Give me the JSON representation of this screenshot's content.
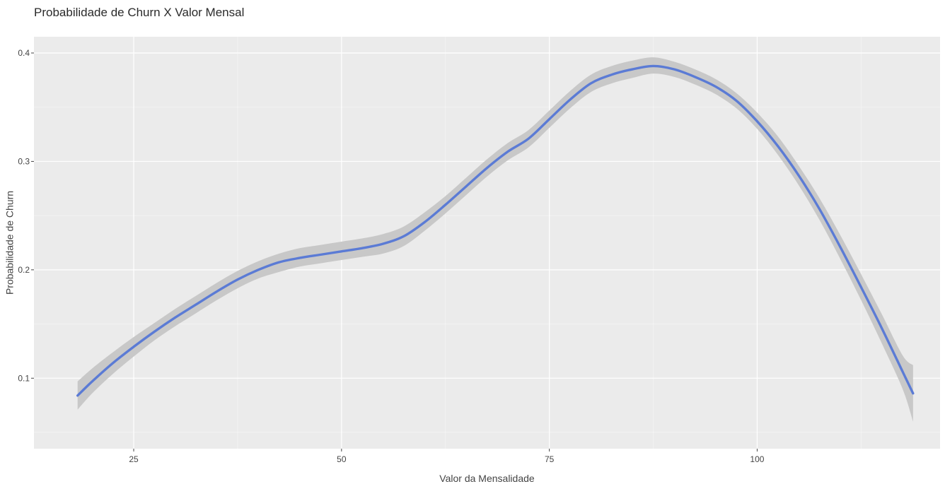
{
  "chart_data": {
    "type": "line",
    "title": "Probabilidade de Churn X Valor Mensal",
    "xlabel": "Valor da Mensalidade",
    "ylabel": "Probabilidade de Churn",
    "xlim": [
      13,
      122
    ],
    "ylim": [
      0.035,
      0.415
    ],
    "x_ticks": [
      25,
      50,
      75,
      100
    ],
    "y_ticks": [
      0.1,
      0.2,
      0.3,
      0.4
    ],
    "grid": true,
    "legend": "none",
    "colors": {
      "line": "#5b7bd5",
      "band": "#c8c8c8",
      "panel": "#ebebeb",
      "grid": "#ffffff"
    },
    "series": [
      {
        "x": [
          18.25,
          20,
          22.5,
          25,
          27.5,
          30,
          32.5,
          35,
          37.5,
          40,
          42.5,
          45,
          47.5,
          50,
          52.5,
          55,
          57.5,
          60,
          62.5,
          65,
          67.5,
          70,
          72.5,
          75,
          77.5,
          80,
          82.5,
          85,
          87.5,
          90,
          92.5,
          95,
          97.5,
          100,
          102.5,
          105,
          107.5,
          110,
          112.5,
          115,
          117.5,
          118.75
        ],
        "y": [
          0.084,
          0.097,
          0.114,
          0.129,
          0.143,
          0.156,
          0.168,
          0.18,
          0.191,
          0.2,
          0.207,
          0.211,
          0.214,
          0.217,
          0.22,
          0.224,
          0.231,
          0.244,
          0.26,
          0.277,
          0.294,
          0.309,
          0.321,
          0.339,
          0.357,
          0.372,
          0.38,
          0.385,
          0.388,
          0.385,
          0.378,
          0.369,
          0.356,
          0.337,
          0.314,
          0.287,
          0.256,
          0.221,
          0.184,
          0.146,
          0.106,
          0.086
        ],
        "y_lower": [
          0.071,
          0.086,
          0.104,
          0.12,
          0.135,
          0.148,
          0.16,
          0.172,
          0.183,
          0.192,
          0.198,
          0.203,
          0.206,
          0.209,
          0.212,
          0.215,
          0.222,
          0.236,
          0.252,
          0.269,
          0.286,
          0.301,
          0.313,
          0.331,
          0.349,
          0.364,
          0.372,
          0.377,
          0.381,
          0.378,
          0.371,
          0.362,
          0.349,
          0.33,
          0.306,
          0.278,
          0.246,
          0.21,
          0.172,
          0.132,
          0.09,
          0.06
        ],
        "y_upper": [
          0.097,
          0.109,
          0.124,
          0.138,
          0.151,
          0.164,
          0.176,
          0.188,
          0.199,
          0.208,
          0.215,
          0.22,
          0.223,
          0.226,
          0.229,
          0.233,
          0.24,
          0.253,
          0.268,
          0.285,
          0.302,
          0.317,
          0.329,
          0.347,
          0.365,
          0.38,
          0.388,
          0.393,
          0.396,
          0.392,
          0.385,
          0.376,
          0.363,
          0.345,
          0.323,
          0.296,
          0.266,
          0.232,
          0.196,
          0.159,
          0.121,
          0.112
        ]
      }
    ]
  }
}
